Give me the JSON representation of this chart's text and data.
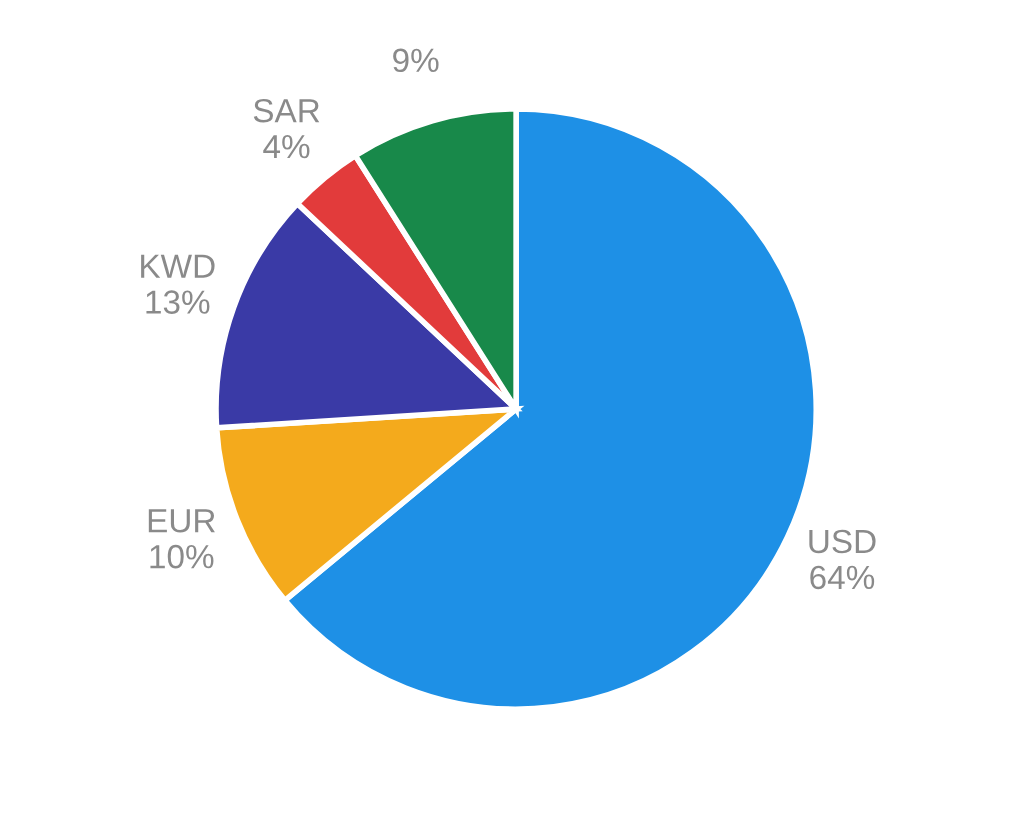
{
  "chart_data": {
    "type": "pie",
    "categories": [
      "USD",
      "EUR",
      "KWD",
      "SAR",
      null
    ],
    "values": [
      64,
      10,
      13,
      4,
      9
    ],
    "value_labels": [
      "64%",
      "10%",
      "13%",
      "4%",
      "9%"
    ],
    "colors": [
      "#1e90e6",
      "#f4aa1c",
      "#3a3aa6",
      "#e23b3b",
      "#18894a"
    ]
  }
}
